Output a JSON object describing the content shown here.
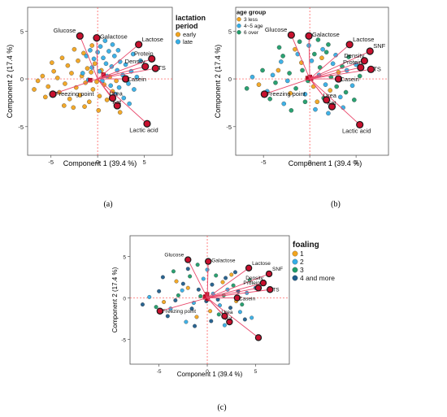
{
  "figure": {
    "panels": [
      "(a)",
      "(b)",
      "(c)"
    ]
  },
  "colors": {
    "variable_point": "#c8102e",
    "vector_line": "#e8476a",
    "ref_line": "#ff4d4d",
    "frame": "#555555"
  },
  "chart_data": [
    {
      "type": "scatter",
      "title": "",
      "xlabel": "Component 1  (39.4 %)",
      "ylabel": "Component 2  (17.4 %)",
      "xlim": [
        -7.5,
        8.0
      ],
      "ylim": [
        -8.0,
        7.5
      ],
      "xticks": [
        -5,
        0,
        5
      ],
      "yticks": [
        -5,
        0,
        5
      ],
      "legend": {
        "title": "lactation period",
        "placement": "right",
        "entries": [
          {
            "name": "early",
            "color": "#f2a41d"
          },
          {
            "name": "late",
            "color": "#35aee6"
          }
        ]
      },
      "variables": [
        {
          "name": "Glucose",
          "x": -1.9,
          "y": 4.5
        },
        {
          "name": "Galactose",
          "x": -0.1,
          "y": 4.3
        },
        {
          "name": "Lactose",
          "x": 4.4,
          "y": 3.6
        },
        {
          "name": "Protein",
          "x": 5.8,
          "y": 2.1
        },
        {
          "name": "Density",
          "x": 5.1,
          "y": 1.3
        },
        {
          "name": "TS",
          "x": 6.2,
          "y": 1.1
        },
        {
          "name": "Casein",
          "x": 3.0,
          "y": 0.0
        },
        {
          "name": "Fat",
          "x": 2.1,
          "y": -2.8
        },
        {
          "name": "Urea",
          "x": 1.6,
          "y": -2.0
        },
        {
          "name": "Lactic acid",
          "x": 5.3,
          "y": -4.7
        },
        {
          "name": "Freezing point",
          "x": -4.8,
          "y": -1.6
        }
      ],
      "series": [
        {
          "name": "early",
          "color": "#f2a41d",
          "points": [
            [
              -6.4,
              -0.2
            ],
            [
              -5.9,
              0.3
            ],
            [
              -5.3,
              -0.8
            ],
            [
              -4.7,
              0.8
            ],
            [
              -4.3,
              0.1
            ],
            [
              -4.1,
              -1.4
            ],
            [
              -3.8,
              2.2
            ],
            [
              -3.5,
              -0.5
            ],
            [
              -3.2,
              1.4
            ],
            [
              -3.0,
              -2.1
            ],
            [
              -2.8,
              0.6
            ],
            [
              -2.5,
              3.1
            ],
            [
              -2.3,
              -0.9
            ],
            [
              -2.1,
              1.9
            ],
            [
              -1.9,
              -1.7
            ],
            [
              -1.7,
              0.3
            ],
            [
              -1.5,
              2.7
            ],
            [
              -1.3,
              -0.4
            ],
            [
              -1.1,
              1.1
            ],
            [
              -0.9,
              -2.4
            ],
            [
              -0.7,
              0.7
            ],
            [
              -0.5,
              -1.1
            ],
            [
              -0.3,
              1.6
            ],
            [
              -0.1,
              -0.3
            ],
            [
              0.2,
              -1.8
            ],
            [
              0.4,
              0.9
            ],
            [
              0.7,
              -0.6
            ],
            [
              1.0,
              -2.2
            ],
            [
              1.3,
              0.2
            ],
            [
              1.6,
              -1.3
            ],
            [
              2.0,
              -0.2
            ],
            [
              2.4,
              -3.5
            ],
            [
              -6.8,
              -1.1
            ],
            [
              -5.6,
              -1.9
            ],
            [
              -4.9,
              1.7
            ],
            [
              -3.6,
              -2.8
            ],
            [
              -2.6,
              -3.0
            ],
            [
              -1.4,
              -2.9
            ],
            [
              -0.6,
              3.5
            ],
            [
              0.1,
              -3.3
            ]
          ]
        },
        {
          "name": "late",
          "color": "#35aee6",
          "points": [
            [
              -1.2,
              2.4
            ],
            [
              -0.8,
              3.0
            ],
            [
              -0.4,
              2.1
            ],
            [
              0.0,
              2.8
            ],
            [
              0.3,
              3.4
            ],
            [
              0.6,
              2.2
            ],
            [
              0.9,
              1.6
            ],
            [
              1.2,
              2.9
            ],
            [
              1.5,
              1.3
            ],
            [
              1.8,
              2.4
            ],
            [
              2.1,
              0.9
            ],
            [
              2.4,
              1.8
            ],
            [
              2.7,
              0.4
            ],
            [
              3.0,
              1.5
            ],
            [
              3.3,
              -0.5
            ],
            [
              3.6,
              0.8
            ],
            [
              3.9,
              -1.1
            ],
            [
              4.2,
              0.2
            ],
            [
              -0.6,
              1.2
            ],
            [
              0.2,
              0.8
            ],
            [
              0.5,
              -0.2
            ],
            [
              1.0,
              0.3
            ],
            [
              1.4,
              -0.7
            ],
            [
              1.9,
              -1.6
            ],
            [
              2.3,
              -0.9
            ],
            [
              2.8,
              -2.0
            ],
            [
              3.4,
              -2.6
            ],
            [
              -1.6,
              0.6
            ],
            [
              -1.0,
              -0.1
            ],
            [
              0.8,
              4.0
            ],
            [
              1.6,
              3.6
            ],
            [
              2.2,
              3.0
            ],
            [
              4.6,
              1.9
            ],
            [
              3.8,
              2.6
            ]
          ]
        }
      ]
    },
    {
      "type": "scatter",
      "title": "",
      "xlabel": "Component 1  (39.4 %)",
      "ylabel": "Component 2  (17.4 %)",
      "xlim": [
        -8.0,
        8.5
      ],
      "ylim": [
        -8.0,
        7.5
      ],
      "xticks": [
        -5,
        0,
        5
      ],
      "yticks": [
        -5,
        0,
        5
      ],
      "legend": {
        "title": "age group",
        "placement": "top-left",
        "entries": [
          {
            "name": "3 less",
            "color": "#f2a41d"
          },
          {
            "name": "4~5 age",
            "color": "#35aee6"
          },
          {
            "name": "6 over",
            "color": "#1f9d6a"
          }
        ]
      },
      "variables": [
        {
          "name": "Glucose",
          "x": -2.0,
          "y": 4.6
        },
        {
          "name": "Galactose",
          "x": -0.1,
          "y": 4.5
        },
        {
          "name": "Lactose",
          "x": 4.3,
          "y": 3.6
        },
        {
          "name": "SNF",
          "x": 6.5,
          "y": 2.9
        },
        {
          "name": "Density",
          "x": 5.9,
          "y": 1.9
        },
        {
          "name": "Protein",
          "x": 5.5,
          "y": 1.2
        },
        {
          "name": "TS",
          "x": 6.6,
          "y": 1.0
        },
        {
          "name": "Casein",
          "x": 3.1,
          "y": 0.0
        },
        {
          "name": "Fat",
          "x": 2.4,
          "y": -2.9
        },
        {
          "name": "Urea",
          "x": 1.8,
          "y": -2.2
        },
        {
          "name": "Lactic acid",
          "x": 5.4,
          "y": -4.8
        },
        {
          "name": "Freezing point",
          "x": -4.9,
          "y": -1.6
        }
      ],
      "series": [
        {
          "name": "3 less",
          "color": "#f2a41d",
          "points": [
            [
              -5.5,
              -0.6
            ],
            [
              -3.4,
              0.9
            ],
            [
              -2.1,
              -1.5
            ],
            [
              -0.9,
              1.7
            ],
            [
              0.4,
              -0.8
            ],
            [
              1.3,
              2.2
            ],
            [
              2.2,
              -1.2
            ],
            [
              3.1,
              0.7
            ],
            [
              -1.6,
              3.1
            ],
            [
              0.8,
              -2.4
            ]
          ]
        },
        {
          "name": "4~5 age",
          "color": "#35aee6",
          "points": [
            [
              -6.2,
              0.2
            ],
            [
              -4.6,
              -1.3
            ],
            [
              -3.1,
              1.8
            ],
            [
              -2.4,
              -0.2
            ],
            [
              -1.3,
              2.6
            ],
            [
              -0.5,
              -1.6
            ],
            [
              0.2,
              1.9
            ],
            [
              1.0,
              0.4
            ],
            [
              1.7,
              -0.6
            ],
            [
              2.5,
              1.6
            ],
            [
              3.3,
              -1.9
            ],
            [
              4.0,
              0.9
            ],
            [
              -0.1,
              3.5
            ],
            [
              1.4,
              3.1
            ],
            [
              2.8,
              2.5
            ],
            [
              4.6,
              -0.7
            ],
            [
              -2.8,
              -2.6
            ],
            [
              0.6,
              -3.2
            ],
            [
              3.6,
              -3.0
            ],
            [
              -4.0,
              0.4
            ],
            [
              5.0,
              1.5
            ],
            [
              2.0,
              -3.6
            ]
          ]
        },
        {
          "name": "6 over",
          "color": "#1f9d6a",
          "points": [
            [
              -6.8,
              -1.0
            ],
            [
              -5.1,
              0.9
            ],
            [
              -4.3,
              -2.1
            ],
            [
              -3.7,
              -0.4
            ],
            [
              -2.9,
              2.4
            ],
            [
              -2.2,
              0.6
            ],
            [
              -1.5,
              -1.0
            ],
            [
              -0.8,
              0.9
            ],
            [
              -0.2,
              -0.2
            ],
            [
              0.5,
              2.6
            ],
            [
              1.1,
              1.2
            ],
            [
              1.8,
              2.8
            ],
            [
              2.3,
              0.2
            ],
            [
              2.9,
              -0.8
            ],
            [
              3.5,
              1.3
            ],
            [
              4.2,
              2.3
            ],
            [
              -1.1,
              3.9
            ],
            [
              0.9,
              4.1
            ],
            [
              2.0,
              3.6
            ],
            [
              -3.3,
              3.3
            ],
            [
              3.9,
              -1.4
            ],
            [
              1.5,
              -2.0
            ],
            [
              -0.5,
              -2.4
            ],
            [
              4.8,
              -2.2
            ],
            [
              -2.0,
              -3.3
            ],
            [
              5.4,
              0.3
            ]
          ]
        }
      ]
    },
    {
      "type": "scatter",
      "title": "",
      "xlabel": "Component 1  (39.4 %)",
      "ylabel": "Component 2  (17.4 %)",
      "xlim": [
        -8.0,
        8.5
      ],
      "ylim": [
        -8.0,
        7.5
      ],
      "xticks": [
        -5,
        0,
        5
      ],
      "yticks": [
        -5,
        0,
        5
      ],
      "legend": {
        "title": "foaling",
        "placement": "right",
        "entries": [
          {
            "name": "1",
            "color": "#f2a41d"
          },
          {
            "name": "2",
            "color": "#35aee6"
          },
          {
            "name": "3",
            "color": "#1f9d6a"
          },
          {
            "name": "4 and more",
            "color": "#1f5d8c"
          }
        ]
      },
      "variables": [
        {
          "name": "Glucose",
          "x": -2.0,
          "y": 4.6
        },
        {
          "name": "Galactose",
          "x": 0.1,
          "y": 4.4
        },
        {
          "name": "Lactose",
          "x": 4.3,
          "y": 3.6
        },
        {
          "name": "SNF",
          "x": 6.4,
          "y": 2.9
        },
        {
          "name": "Density",
          "x": 5.8,
          "y": 1.8
        },
        {
          "name": "Protein",
          "x": 5.3,
          "y": 1.2
        },
        {
          "name": "TS",
          "x": 6.5,
          "y": 1.0
        },
        {
          "name": "Casein",
          "x": 3.1,
          "y": 0.0
        },
        {
          "name": "Fat",
          "x": 2.3,
          "y": -2.9
        },
        {
          "name": "Urea",
          "x": 1.8,
          "y": -2.2
        },
        {
          "name": "",
          "x": 5.3,
          "y": -4.8
        },
        {
          "name": "Freezing point",
          "x": -4.9,
          "y": -1.6
        }
      ],
      "series": [
        {
          "name": "1",
          "color": "#f2a41d",
          "points": [
            [
              -4.5,
              -0.5
            ],
            [
              -2.0,
              1.2
            ],
            [
              0.3,
              -1.6
            ],
            [
              1.6,
              1.9
            ],
            [
              3.0,
              -0.4
            ],
            [
              -1.1,
              -2.3
            ],
            [
              2.5,
              2.8
            ],
            [
              -3.2,
              2.0
            ]
          ]
        },
        {
          "name": "2",
          "color": "#35aee6",
          "points": [
            [
              -6.0,
              0.1
            ],
            [
              -3.8,
              -1.3
            ],
            [
              -2.6,
              0.9
            ],
            [
              -1.4,
              -0.6
            ],
            [
              -0.4,
              2.3
            ],
            [
              0.6,
              0.5
            ],
            [
              1.3,
              -0.9
            ],
            [
              2.1,
              1.0
            ],
            [
              3.4,
              -1.7
            ],
            [
              4.1,
              0.6
            ],
            [
              0.0,
              3.4
            ],
            [
              -2.2,
              -2.9
            ],
            [
              1.8,
              -3.3
            ],
            [
              4.6,
              -2.4
            ]
          ]
        },
        {
          "name": "3",
          "color": "#1f9d6a",
          "points": [
            [
              -5.3,
              -1.1
            ],
            [
              -3.0,
              0.3
            ],
            [
              -1.8,
              2.6
            ],
            [
              -0.7,
              0.2
            ],
            [
              0.9,
              2.7
            ],
            [
              1.7,
              0.3
            ],
            [
              2.7,
              1.5
            ],
            [
              3.6,
              -0.8
            ],
            [
              -1.0,
              4.0
            ],
            [
              1.2,
              -2.0
            ],
            [
              4.4,
              2.1
            ],
            [
              -3.5,
              3.2
            ]
          ]
        },
        {
          "name": "4 and more",
          "color": "#1f5d8c",
          "points": [
            [
              -6.7,
              -0.8
            ],
            [
              -5.0,
              0.8
            ],
            [
              -4.1,
              -2.2
            ],
            [
              -3.3,
              -0.3
            ],
            [
              -2.5,
              1.7
            ],
            [
              -1.6,
              -1.3
            ],
            [
              -0.9,
              1.0
            ],
            [
              -0.1,
              -0.4
            ],
            [
              0.5,
              1.6
            ],
            [
              1.1,
              -0.2
            ],
            [
              1.9,
              2.4
            ],
            [
              2.4,
              -1.2
            ],
            [
              3.2,
              0.8
            ],
            [
              3.9,
              -2.6
            ],
            [
              -2.0,
              3.5
            ],
            [
              0.4,
              -2.8
            ],
            [
              2.9,
              3.1
            ],
            [
              5.0,
              1.2
            ],
            [
              -4.6,
              2.5
            ],
            [
              -1.3,
              -3.4
            ]
          ]
        }
      ]
    }
  ]
}
